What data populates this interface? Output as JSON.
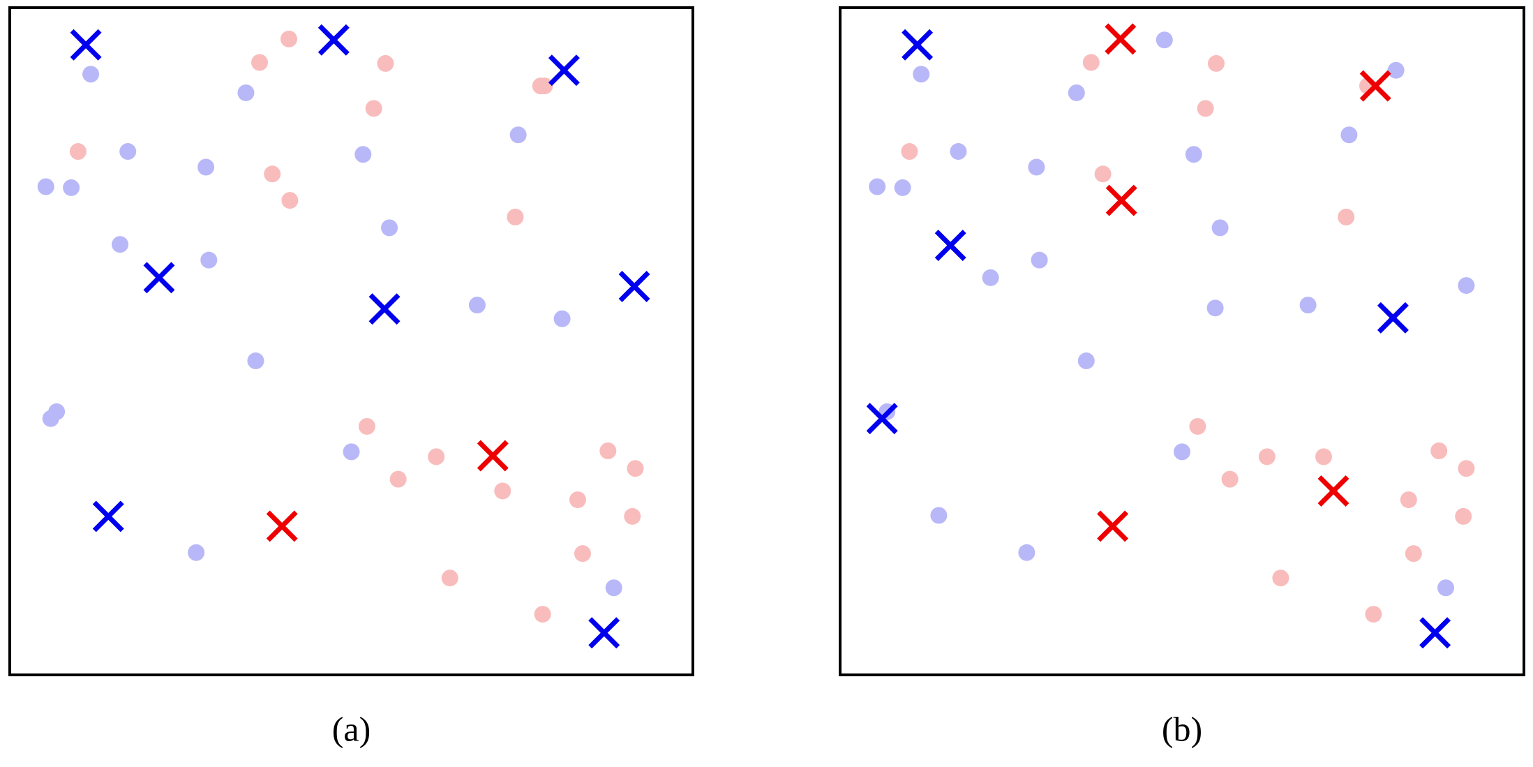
{
  "chart_data": [
    {
      "type": "scatter",
      "title": "(a)",
      "xlim": [
        0,
        700
      ],
      "ylim": [
        0,
        682
      ],
      "series": [
        {
          "marker": "o",
          "color": "#b8b8f8",
          "x": [
            83,
            242,
            121,
            201,
            37,
            63,
            362,
            521,
            113,
            204,
            389,
            479,
            566,
            252,
            48,
            42,
            350,
            191,
            619
          ],
          "y": [
            614,
            595,
            535,
            519,
            499,
            498,
            532,
            552,
            440,
            424,
            457,
            378,
            364,
            321,
            269,
            262,
            228,
            125,
            89
          ]
        },
        {
          "marker": "o",
          "color": "#f9bcbc",
          "x": [
            286,
            256,
            385,
            544,
            548,
            373,
            70,
            269,
            287,
            518,
            366,
            437,
            398,
            505,
            613,
            641,
            582,
            638,
            587,
            451,
            546
          ],
          "y": [
            650,
            626,
            625,
            602,
            602,
            579,
            535,
            512,
            485,
            468,
            254,
            223,
            200,
            188,
            229,
            211,
            179,
            162,
            124,
            99,
            62
          ]
        },
        {
          "marker": "x",
          "color": "#0000ee",
          "x": [
            78,
            332,
            568,
            153,
            640,
            384,
            101,
            609
          ],
          "y": [
            644,
            649,
            618,
            406,
            397,
            374,
            162,
            43
          ]
        },
        {
          "marker": "x",
          "color": "#ee0000",
          "x": [
            495,
            279
          ],
          "y": [
            224,
            152
          ]
        }
      ]
    },
    {
      "type": "scatter",
      "title": "(b)",
      "xlim": [
        0,
        700
      ],
      "ylim": [
        0,
        682
      ],
      "series": [
        {
          "marker": "o",
          "color": "#b8b8f8",
          "x": [
            83,
            242,
            332,
            569,
            121,
            201,
            38,
            64,
            362,
            521,
            204,
            154,
            389,
            384,
            479,
            641,
            252,
            48,
            350,
            101,
            191,
            620
          ],
          "y": [
            614,
            595,
            649,
            618,
            535,
            519,
            499,
            498,
            532,
            552,
            424,
            406,
            457,
            375,
            378,
            398,
            321,
            269,
            228,
            163,
            125,
            89
          ]
        },
        {
          "marker": "o",
          "color": "#f9bcbc",
          "x": [
            257,
            385,
            374,
            540,
            71,
            269,
            518,
            366,
            437,
            495,
            399,
            613,
            641,
            582,
            638,
            587,
            451,
            546
          ],
          "y": [
            626,
            625,
            579,
            602,
            535,
            512,
            468,
            254,
            223,
            223,
            200,
            229,
            211,
            179,
            162,
            124,
            99,
            62
          ]
        },
        {
          "marker": "x",
          "color": "#0000ee",
          "x": [
            79,
            113,
            566,
            43,
            609
          ],
          "y": [
            644,
            439,
            365,
            262,
            43
          ]
        },
        {
          "marker": "x",
          "color": "#ee0000",
          "x": [
            287,
            548,
            288,
            505,
            279
          ],
          "y": [
            650,
            602,
            485,
            188,
            152
          ]
        }
      ]
    }
  ]
}
